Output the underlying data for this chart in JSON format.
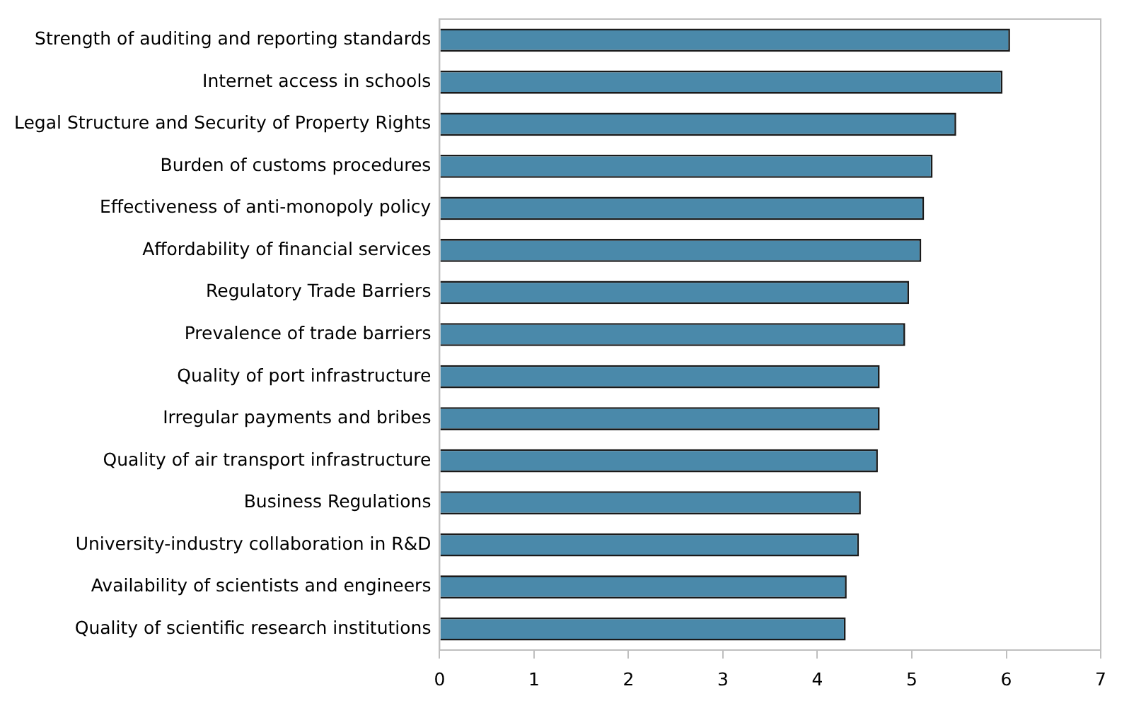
{
  "chart_data": {
    "type": "bar",
    "orientation": "horizontal",
    "categories": [
      "Strength of auditing and reporting standards",
      "Internet access in schools",
      "Legal Structure and Security of Property Rights",
      "Burden of customs procedures",
      "Effectiveness of anti-monopoly policy",
      "Affordability of financial services",
      "Regulatory Trade Barriers",
      "Prevalence of trade barriers",
      "Quality of port infrastructure",
      "Irregular payments and bribes",
      "Quality of air transport infrastructure",
      "Business Regulations",
      "University-industry collaboration in R&D",
      "Availability of scientists and engineers",
      "Quality of scientific research institutions"
    ],
    "values": [
      6.04,
      5.96,
      5.47,
      5.22,
      5.13,
      5.1,
      4.97,
      4.93,
      4.66,
      4.66,
      4.64,
      4.46,
      4.44,
      4.31,
      4.3
    ],
    "color": "#4a89aa",
    "xlim": [
      0,
      7
    ],
    "xticks": [
      0,
      1,
      2,
      3,
      4,
      5,
      6,
      7
    ],
    "grid": false,
    "legend": false
  }
}
